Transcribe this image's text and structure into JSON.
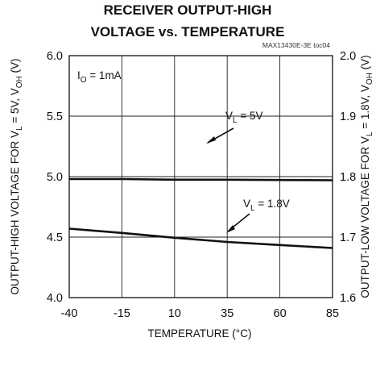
{
  "chart_data": {
    "type": "line",
    "title_lines": [
      "RECEIVER OUTPUT-HIGH",
      "VOLTAGE vs. TEMPERATURE"
    ],
    "code": "MAX13430E-3E toc04",
    "condition": {
      "main": "I",
      "sub": "O",
      "rest": " = 1mA"
    },
    "xlabel": "TEMPERATURE (°C)",
    "ylabel_left": {
      "a": "OUTPUT-HIGH VOLTAGE FOR V",
      "a_sub": "L",
      "b": " = 5V, V",
      "b_sub": "OH",
      "c": " (V)"
    },
    "ylabel_right": {
      "a": "OUTPUT-LOW VOLTAGE FOR V",
      "a_sub": "L",
      "b": " = 1.8V, V",
      "b_sub": "OH",
      "c": " (V)"
    },
    "xlim": [
      -40,
      85
    ],
    "ylim_left": [
      4.0,
      6.0
    ],
    "ylim_right": [
      1.6,
      2.0
    ],
    "x_ticks": [
      -40,
      -15,
      10,
      35,
      60,
      85
    ],
    "x_tick_labels": [
      "-40",
      "-15",
      "10",
      "35",
      "60",
      "85"
    ],
    "y_left_ticks": [
      4.0,
      4.5,
      5.0,
      5.5,
      6.0
    ],
    "y_left_tick_labels": [
      "4.0",
      "4.5",
      "5.0",
      "5.5",
      "6.0"
    ],
    "y_right_ticks": [
      1.6,
      1.7,
      1.8,
      1.9,
      2.0
    ],
    "y_right_tick_labels": [
      "1.6",
      "1.7",
      "1.8",
      "1.9",
      "2.0"
    ],
    "grid": true,
    "series": [
      {
        "name": "VL = 5V",
        "label": {
          "main": "V",
          "sub": "L",
          "rest": " = 5V"
        },
        "axis": "left",
        "x": [
          -40,
          -15,
          10,
          35,
          60,
          85
        ],
        "y": [
          4.98,
          4.98,
          4.975,
          4.975,
          4.972,
          4.97
        ]
      },
      {
        "name": "VL = 1.8V",
        "label": {
          "main": "V",
          "sub": "L",
          "rest": " = 1.8V"
        },
        "axis": "left",
        "x": [
          -40,
          -15,
          10,
          35,
          60,
          85
        ],
        "y": [
          4.57,
          4.535,
          4.495,
          4.46,
          4.435,
          4.41
        ]
      }
    ]
  }
}
